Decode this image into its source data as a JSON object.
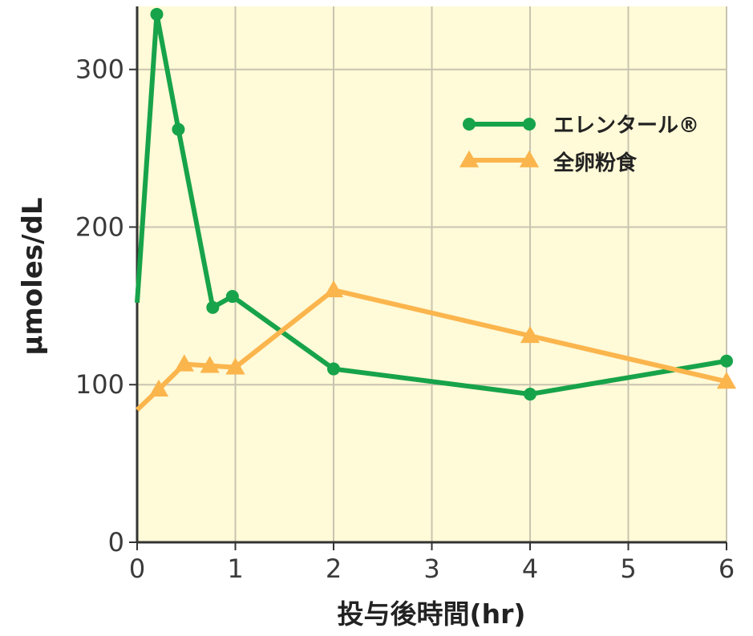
{
  "chart_data": {
    "type": "line",
    "xlabel": "投与後時間(hr)",
    "ylabel": "μmoles/dL",
    "xlim": [
      0,
      6
    ],
    "ylim": [
      0,
      340
    ],
    "xticks": [
      0,
      1,
      2,
      3,
      4,
      5,
      6
    ],
    "yticks": [
      0,
      100,
      200,
      300
    ],
    "grid": true,
    "background_color": "#fffad7",
    "legend_position": "top-right",
    "series": [
      {
        "name": "エレンタール®",
        "color": "#17a34a",
        "marker": "circle",
        "x": [
          0,
          0.2,
          0.42,
          0.77,
          0.97,
          2,
          4,
          6
        ],
        "y": [
          152,
          335,
          262,
          149,
          156,
          110,
          94,
          115
        ]
      },
      {
        "name": "全卵粉食",
        "color": "#fbb54d",
        "marker": "triangle",
        "x": [
          0,
          0.22,
          0.48,
          0.74,
          1.0,
          2,
          4,
          6
        ],
        "y": [
          84,
          97,
          113,
          112,
          111,
          160,
          131,
          102
        ]
      }
    ]
  }
}
